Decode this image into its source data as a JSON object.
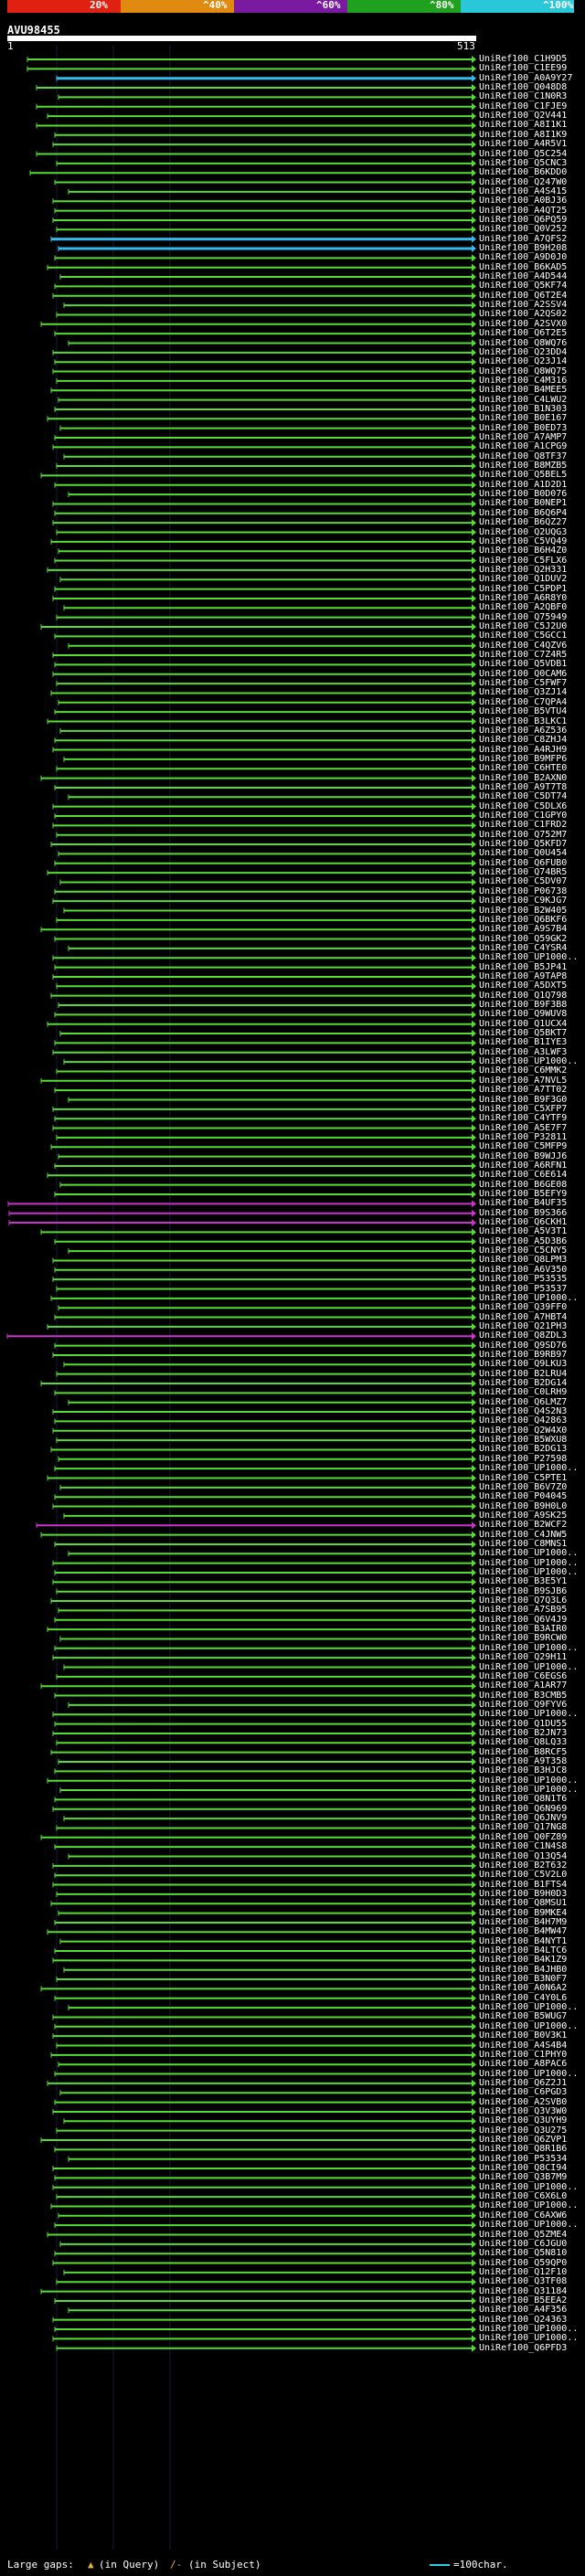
{
  "header": {
    "query_id": "AVU98455",
    "pos_start": "1",
    "pos_end": "513",
    "scale_labels": [
      "20%",
      "^40%",
      "^60%",
      "^80%",
      "^100%"
    ],
    "scale_colors": [
      "#e02010",
      "#e08a10",
      "#7a1aa0",
      "#1fa01f",
      "#28c8d8"
    ]
  },
  "colors": {
    "hit_green": "#55dd33",
    "hit_cyan": "#33bbee",
    "hit_magenta": "#cc33cc",
    "guide_line": "#1a1a3a"
  },
  "hit_names": [
    "UniRef100_C1H9D5",
    "UniRef100_C1EE99",
    "UniRef100_A0A9Y27",
    "UniRef100_Q048D8",
    "UniRef100_C1N0R3",
    "UniRef100_C1FJE9",
    "UniRef100_Q2V441",
    "UniRef100_A8I1K1",
    "UniRef100_A8I1K9",
    "UniRef100_A4R5V1",
    "UniRef100_Q5C254",
    "UniRef100_Q5CNC3",
    "UniRef100_B6KDD0",
    "UniRef100_Q247W0",
    "UniRef100_A4S415",
    "UniRef100_A0BJ36",
    "UniRef100_A4QT25",
    "UniRef100_Q6PQ59",
    "UniRef100_Q0V252",
    "UniRef100_A7QFS2",
    "UniRef100_B9H208",
    "UniRef100_A9D0J0",
    "UniRef100_B6KAD5",
    "UniRef100_A4D544",
    "UniRef100_Q5KF74",
    "UniRef100_Q6T2E4",
    "UniRef100_A2SSV4",
    "UniRef100_A2QS02",
    "UniRef100_A2SVX0",
    "UniRef100_Q6T2E5",
    "UniRef100_Q8WQ76",
    "UniRef100_Q23DD4",
    "UniRef100_Q23J14",
    "UniRef100_Q8WQ75",
    "UniRef100_C4M316",
    "UniRef100_B4MEE5",
    "UniRef100_C4LWU2",
    "UniRef100_B1N303",
    "UniRef100_B0E167",
    "UniRef100_B0ED73",
    "UniRef100_A7AMP7",
    "UniRef100_A1CPG9",
    "UniRef100_Q8TF37",
    "UniRef100_B8MZB5",
    "UniRef100_Q5BEL5",
    "UniRef100_A1D2D1",
    "UniRef100_B0D076",
    "UniRef100_B0NEP1",
    "UniRef100_B6Q6P4",
    "UniRef100_B6QZ27",
    "UniRef100_Q2UQG3",
    "UniRef100_C5VQ49",
    "UniRef100_B6H4Z0",
    "UniRef100_C5FLX6",
    "UniRef100_Q2H331",
    "UniRef100_Q1DUV2",
    "UniRef100_C5PDP1",
    "UniRef100_A6R8Y0",
    "UniRef100_A2QBF0",
    "UniRef100_Q75949",
    "UniRef100_C5J2U0",
    "UniRef100_C5GCC1",
    "UniRef100_C4QZV6",
    "UniRef100_C7Z4R5",
    "UniRef100_Q5VDB1",
    "UniRef100_Q0CAM6",
    "UniRef100_C5FWF7",
    "UniRef100_Q3ZJ14",
    "UniRef100_C7QPA4",
    "UniRef100_B5VTU4",
    "UniRef100_B3LKC1",
    "UniRef100_A6Z536",
    "UniRef100_C8ZHJ4",
    "UniRef100_A4RJH9",
    "UniRef100_B9MFP6",
    "UniRef100_C6HTE0",
    "UniRef100_B2AXN0",
    "UniRef100_A9T7T8",
    "UniRef100_C5DT74",
    "UniRef100_C5DLX6",
    "UniRef100_C1GPY0",
    "UniRef100_C1FRD2",
    "UniRef100_Q752M7",
    "UniRef100_Q5KFD7",
    "UniRef100_Q0U454",
    "UniRef100_Q6FUB0",
    "UniRef100_Q74BR5",
    "UniRef100_C5DV07",
    "UniRef100_P06738",
    "UniRef100_C9KJG7",
    "UniRef100_B2W405",
    "UniRef100_Q6BKF6",
    "UniRef100_A9S7B4",
    "UniRef100_Q59GK2",
    "UniRef100_C4YSR4",
    "UniRef100_UP1000..",
    "UniRef100_B5JP41",
    "UniRef100_A9TAP8",
    "UniRef100_A5DXT5",
    "UniRef100_Q1Q798",
    "UniRef100_B9F3B8",
    "UniRef100_Q9WUV8",
    "UniRef100_Q1UCX4",
    "UniRef100_Q5BKT7",
    "UniRef100_B1IYE3",
    "UniRef100_A3LWF3",
    "UniRef100_UP1000..",
    "UniRef100_C6MMK2",
    "UniRef100_A7NVL5",
    "UniRef100_A7TT02",
    "UniRef100_B9F3G0",
    "UniRef100_C5XFP7",
    "UniRef100_C4YTF9",
    "UniRef100_A5E7F7",
    "UniRef100_P32811",
    "UniRef100_C5MFP9",
    "UniRef100_B9WJJ6",
    "UniRef100_A6RFN1",
    "UniRef100_C6E614",
    "UniRef100_B6GE08",
    "UniRef100_B5EFY9",
    "UniRef100_B4UF35",
    "UniRef100_B9S366",
    "UniRef100_Q6CKH1",
    "UniRef100_A5V3T1",
    "UniRef100_A5D3B6",
    "UniRef100_C5CNY5",
    "UniRef100_Q8LPM3",
    "UniRef100_A6V350",
    "UniRef100_P53535",
    "UniRef100_P53537",
    "UniRef100_UP1000..",
    "UniRef100_Q39FF0",
    "UniRef100_A7HBT4",
    "UniRef100_Q21PH3",
    "UniRef100_Q8ZDL3",
    "UniRef100_Q9SD76",
    "UniRef100_B9RB97",
    "UniRef100_Q9LKU3",
    "UniRef100_B2LRU4",
    "UniRef100_B2DG14",
    "UniRef100_C0LRH9",
    "UniRef100_Q6LMZ7",
    "UniRef100_Q4S2N3",
    "UniRef100_Q42863",
    "UniRef100_Q2W4X0",
    "UniRef100_B5WXU8",
    "UniRef100_B2DG13",
    "UniRef100_P27598",
    "UniRef100_UP1000..",
    "UniRef100_C5PTE1",
    "UniRef100_B6V7Z0",
    "UniRef100_P04045",
    "UniRef100_B9H0L0",
    "UniRef100_A9SK25",
    "UniRef100_B2WCF2",
    "UniRef100_C4JNW5",
    "UniRef100_C8MNS1",
    "UniRef100_UP1000..",
    "UniRef100_UP1000..",
    "UniRef100_UP1000..",
    "UniRef100_B3E5Y1",
    "UniRef100_B9SJB6",
    "UniRef100_Q7Q3L6",
    "UniRef100_A7SB95",
    "UniRef100_Q6V4J9",
    "UniRef100_B3AIR0",
    "UniRef100_B9RCW0",
    "UniRef100_UP1000..",
    "UniRef100_Q29H11",
    "UniRef100_UP1000..",
    "UniRef100_C6EGS6",
    "UniRef100_A1AR77",
    "UniRef100_B3CMB5",
    "UniRef100_Q9FYV6",
    "UniRef100_UP1000..",
    "UniRef100_Q1DU55",
    "UniRef100_B2JN73",
    "UniRef100_Q8LQ33",
    "UniRef100_B8RCF5",
    "UniRef100_A9T358",
    "UniRef100_B3HJC8",
    "UniRef100_UP1000..",
    "UniRef100_UP1000..",
    "UniRef100_Q8N1T6",
    "UniRef100_Q6N969",
    "UniRef100_Q6JNV9",
    "UniRef100_Q17NG8",
    "UniRef100_Q0FZ89",
    "UniRef100_C1N4S8",
    "UniRef100_Q13Q54",
    "UniRef100_B2T632",
    "UniRef100_C5V2L0",
    "UniRef100_B1FTS4",
    "UniRef100_B9H0D3",
    "UniRef100_Q8MSU1",
    "UniRef100_B9MKE4",
    "UniRef100_B4H7M9",
    "UniRef100_B4MW47",
    "UniRef100_B4NYT1",
    "UniRef100_B4LTC6",
    "UniRef100_B4K1Z9",
    "UniRef100_B4JHB0",
    "UniRef100_B3N0F7",
    "UniRef100_A0N6A2",
    "UniRef100_C4Y0L6",
    "UniRef100_UP1000..",
    "UniRef100_B5WUG7",
    "UniRef100_UP1000..",
    "UniRef100_B0V3K1",
    "UniRef100_A4S4B4",
    "UniRef100_C1PHY0",
    "UniRef100_A8PAC6",
    "UniRef100_UP1000..",
    "UniRef100_Q6Z2J1",
    "UniRef100_C6PGD3",
    "UniRef100_A2SVB0",
    "UniRef100_Q3V3W0",
    "UniRef100_Q3UYH9",
    "UniRef100_Q3U275",
    "UniRef100_Q6ZVP1",
    "UniRef100_Q8R1B6",
    "UniRef100_P53534",
    "UniRef100_Q8CI94",
    "UniRef100_Q3B7M9",
    "UniRef100_UP1000..",
    "UniRef100_C6X6L0",
    "UniRef100_UP1000..",
    "UniRef100_C6AXW6",
    "UniRef100_UP1000..",
    "UniRef100_Q5ZME4",
    "UniRef100_C6JGU0",
    "UniRef100_Q5N810",
    "UniRef100_Q59QP0",
    "UniRef100_Q12F10",
    "UniRef100_Q3TF08",
    "UniRef100_Q31184",
    "UniRef100_B5EEA2",
    "UniRef100_A4F356",
    "UniRef100_Q24363",
    "UniRef100_UP1000..",
    "UniRef100_UP1000..",
    "UniRef100_Q6PFD3"
  ],
  "legend": {
    "large_gaps": "Large gaps:",
    "in_query": "(in Query)",
    "in_subject": "(in Subject)",
    "scale": "=100char."
  }
}
